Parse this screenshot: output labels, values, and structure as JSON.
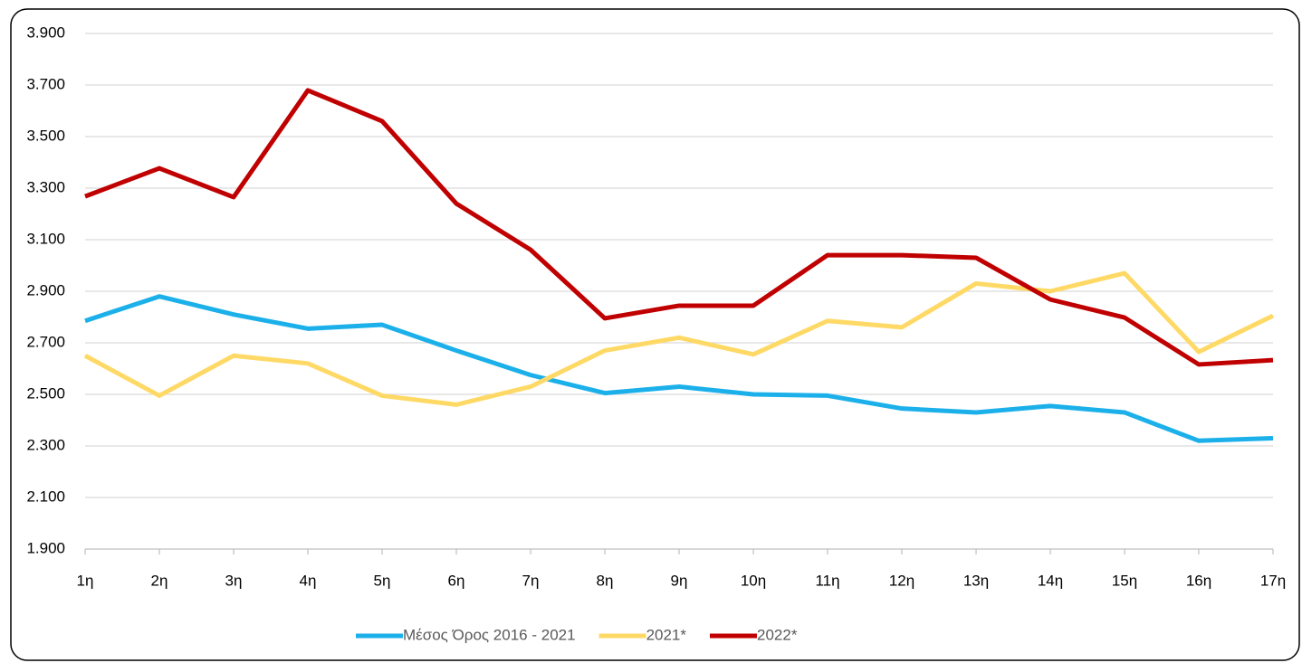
{
  "chart_data": {
    "type": "line",
    "categories": [
      "1η",
      "2η",
      "3η",
      "4η",
      "5η",
      "6η",
      "7η",
      "8η",
      "9η",
      "10η",
      "11η",
      "12η",
      "13η",
      "14η",
      "15η",
      "16η",
      "17η"
    ],
    "series": [
      {
        "name": "Μέσος Όρος 2016 - 2021",
        "color": "#1cb0ea",
        "values": [
          2785,
          2880,
          2810,
          2755,
          2770,
          2670,
          2575,
          2505,
          2530,
          2500,
          2495,
          2445,
          2430,
          2455,
          2430,
          2320,
          2330
        ]
      },
      {
        "name": "2021*",
        "color": "#ffd966",
        "values": [
          2650,
          2495,
          2650,
          2620,
          2495,
          2460,
          2530,
          2670,
          2720,
          2655,
          2785,
          2760,
          2930,
          2900,
          2970,
          2665,
          2805
        ]
      },
      {
        "name": "2022*",
        "color": "#c00000",
        "values": [
          3268,
          3377,
          3265,
          3679,
          3560,
          3240,
          3061,
          2795,
          2844,
          2844,
          3040,
          3040,
          3030,
          2868,
          2798,
          2616,
          2633
        ]
      }
    ],
    "ylim": [
      1900,
      3900
    ],
    "yticks": [
      {
        "value": 1900,
        "label": "1.900"
      },
      {
        "value": 2100,
        "label": "2.100"
      },
      {
        "value": 2300,
        "label": "2.300"
      },
      {
        "value": 2500,
        "label": "2.500"
      },
      {
        "value": 2700,
        "label": "2.700"
      },
      {
        "value": 2900,
        "label": "2.900"
      },
      {
        "value": 3100,
        "label": "3.100"
      },
      {
        "value": 3300,
        "label": "3.300"
      },
      {
        "value": 3500,
        "label": "3.500"
      },
      {
        "value": 3700,
        "label": "3.700"
      },
      {
        "value": 3900,
        "label": "3.900"
      }
    ],
    "grid": true,
    "legend": "bottom"
  }
}
